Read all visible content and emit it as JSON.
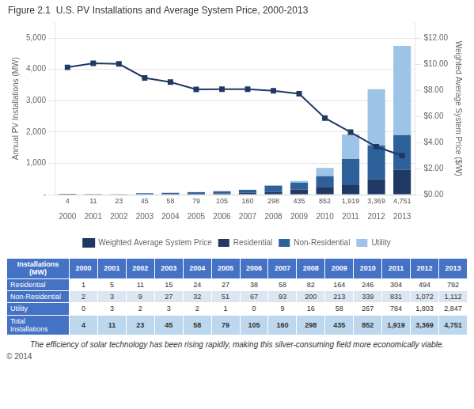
{
  "chart_data": {
    "type": "bar",
    "title": "Figure 2.1  U.S. PV Installations and Average System Price, 2000-2013",
    "categories": [
      "2000",
      "2001",
      "2002",
      "2003",
      "2004",
      "2005",
      "2006",
      "2007",
      "2008",
      "2009",
      "2010",
      "2011",
      "2012",
      "2013"
    ],
    "stacked": true,
    "grid": true,
    "legend": "bottom",
    "ylabel": "Annual PV Installations (MW)",
    "y2label": "Weighted Average System Price ($/W)",
    "ylim": [
      0,
      5500
    ],
    "yticks": [
      {
        "value": 0,
        "label": "-"
      },
      {
        "value": 1000,
        "label": "1,000"
      },
      {
        "value": 2000,
        "label": "2,000"
      },
      {
        "value": 3000,
        "label": "3,000"
      },
      {
        "value": 4000,
        "label": "4,000"
      },
      {
        "value": 5000,
        "label": "5,000"
      }
    ],
    "y2lim": [
      0,
      13.2
    ],
    "y2ticks": [
      {
        "value": 0,
        "label": "$0.00"
      },
      {
        "value": 2,
        "label": "$2.00"
      },
      {
        "value": 4,
        "label": "$4.00"
      },
      {
        "value": 6,
        "label": "$6.00"
      },
      {
        "value": 8,
        "label": "$8.00"
      },
      {
        "value": 10,
        "label": "$10.00"
      },
      {
        "value": 12,
        "label": "$12.00"
      }
    ],
    "series": [
      {
        "name": "Residential",
        "color": "#1f3864",
        "values": [
          1,
          5,
          11,
          15,
          24,
          27,
          38,
          58,
          82,
          164,
          246,
          304,
          494,
          792
        ],
        "value_labels": [
          "1",
          "5",
          "11",
          "15",
          "24",
          "27",
          "38",
          "58",
          "82",
          "164",
          "246",
          "304",
          "494",
          "792"
        ]
      },
      {
        "name": "Non-Residential",
        "color": "#2e6099",
        "values": [
          2,
          3,
          9,
          27,
          32,
          51,
          67,
          93,
          200,
          213,
          339,
          831,
          1072,
          1112
        ],
        "value_labels": [
          "2",
          "3",
          "9",
          "27",
          "32",
          "51",
          "67",
          "93",
          "200",
          "213",
          "339",
          "831",
          "1,072",
          "1,112"
        ]
      },
      {
        "name": "Utility",
        "color": "#9dc3e6",
        "values": [
          0,
          3,
          2,
          3,
          2,
          1,
          0,
          9,
          16,
          58,
          267,
          784,
          1803,
          2847
        ],
        "value_labels": [
          "0",
          "3",
          "2",
          "3",
          "2",
          "1",
          "0",
          "9",
          "16",
          "58",
          "267",
          "784",
          "1,803",
          "2,847"
        ]
      },
      {
        "name": "Weighted Average System Price",
        "type": "line",
        "axis": "y2",
        "color": "#1f3864",
        "marker": "square",
        "values": [
          9.76,
          10.07,
          10.02,
          8.95,
          8.63,
          8.07,
          8.08,
          8.08,
          7.96,
          7.74,
          5.87,
          4.79,
          3.67,
          2.99
        ]
      }
    ],
    "totals": {
      "values": [
        4,
        11,
        23,
        45,
        58,
        79,
        105,
        160,
        298,
        435,
        852,
        1919,
        3369,
        4751
      ],
      "value_labels": [
        "4",
        "11",
        "23",
        "45",
        "58",
        "79",
        "105",
        "160",
        "298",
        "435",
        "852",
        "1,919",
        "3,369",
        "4,751"
      ]
    },
    "table": {
      "header": "Installations\n(MW)",
      "row_labels": [
        "Residential",
        "Non-Residential",
        "Utility",
        "Total\nInstallations"
      ]
    },
    "caption": "The efficiency of solar technology has been rising rapidly, making this silver-consuming field more economically viable.",
    "copyright": "© 2014"
  }
}
